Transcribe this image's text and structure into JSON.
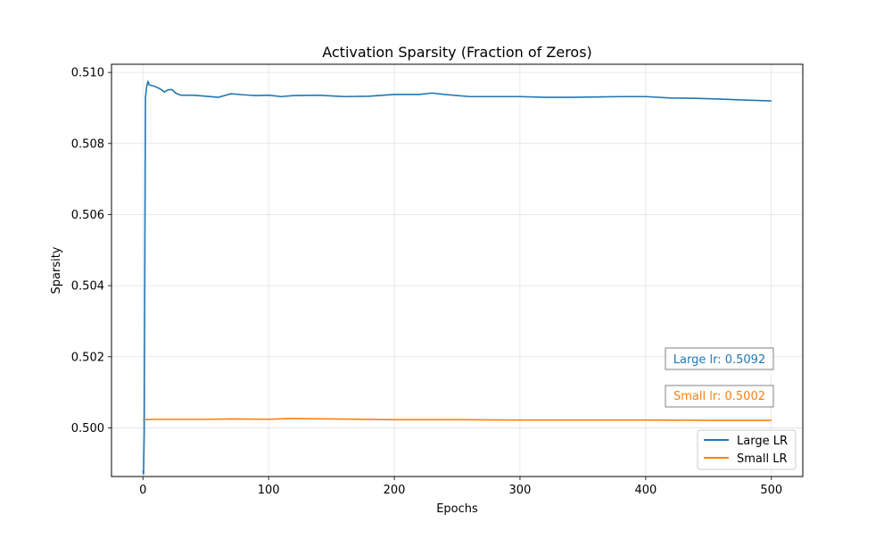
{
  "chart_data": {
    "type": "line",
    "title": "Activation Sparsity (Fraction of Zeros)",
    "xlabel": "Epochs",
    "ylabel": "Sparsity",
    "xlim": [
      -25,
      525
    ],
    "ylim": [
      0.49863,
      0.51023
    ],
    "xticks": [
      0,
      100,
      200,
      300,
      400,
      500
    ],
    "xtick_labels": [
      "0",
      "100",
      "200",
      "300",
      "400",
      "500"
    ],
    "yticks": [
      0.5,
      0.502,
      0.504,
      0.506,
      0.508,
      0.51
    ],
    "ytick_labels": [
      "0.500",
      "0.502",
      "0.504",
      "0.506",
      "0.508",
      "0.510"
    ],
    "grid": true,
    "legend_position": "lower-right",
    "colors": {
      "large": "#1f77b4",
      "small": "#ff7f0e"
    },
    "series": [
      {
        "name": "Large LR",
        "color": "#1f77b4",
        "points": [
          [
            0,
            0.4988
          ],
          [
            0.5,
            0.4987
          ],
          [
            1,
            0.4998
          ],
          [
            2,
            0.5093
          ],
          [
            3,
            0.5096
          ],
          [
            4,
            0.50975
          ],
          [
            5,
            0.50965
          ],
          [
            7,
            0.50963
          ],
          [
            10,
            0.5096
          ],
          [
            14,
            0.50953
          ],
          [
            17,
            0.50945
          ],
          [
            20,
            0.50951
          ],
          [
            23,
            0.50952
          ],
          [
            26,
            0.50942
          ],
          [
            30,
            0.50936
          ],
          [
            40,
            0.50936
          ],
          [
            50,
            0.50933
          ],
          [
            60,
            0.5093
          ],
          [
            65,
            0.50935
          ],
          [
            70,
            0.5094
          ],
          [
            80,
            0.50937
          ],
          [
            90,
            0.50935
          ],
          [
            100,
            0.50936
          ],
          [
            110,
            0.50932
          ],
          [
            120,
            0.50935
          ],
          [
            140,
            0.50936
          ],
          [
            160,
            0.50932
          ],
          [
            180,
            0.50933
          ],
          [
            200,
            0.50938
          ],
          [
            220,
            0.50938
          ],
          [
            230,
            0.50942
          ],
          [
            240,
            0.50938
          ],
          [
            260,
            0.50932
          ],
          [
            280,
            0.50932
          ],
          [
            300,
            0.50932
          ],
          [
            320,
            0.5093
          ],
          [
            340,
            0.5093
          ],
          [
            360,
            0.50931
          ],
          [
            380,
            0.50932
          ],
          [
            400,
            0.50932
          ],
          [
            420,
            0.50928
          ],
          [
            440,
            0.50927
          ],
          [
            460,
            0.50925
          ],
          [
            480,
            0.50922
          ],
          [
            500,
            0.5092
          ]
        ]
      },
      {
        "name": "Small LR",
        "color": "#ff7f0e",
        "points": [
          [
            0,
            0.50023
          ],
          [
            10,
            0.50024
          ],
          [
            50,
            0.50024
          ],
          [
            70,
            0.50025
          ],
          [
            100,
            0.50024
          ],
          [
            115,
            0.50026
          ],
          [
            150,
            0.50025
          ],
          [
            200,
            0.50023
          ],
          [
            250,
            0.50023
          ],
          [
            300,
            0.50022
          ],
          [
            350,
            0.50022
          ],
          [
            400,
            0.50022
          ],
          [
            450,
            0.50021
          ],
          [
            500,
            0.50021
          ]
        ]
      }
    ],
    "annotations": [
      {
        "text": "Large lr: 0.5092",
        "color": "#1f77b4"
      },
      {
        "text": "Small lr: 0.5002",
        "color": "#ff7f0e"
      }
    ]
  }
}
